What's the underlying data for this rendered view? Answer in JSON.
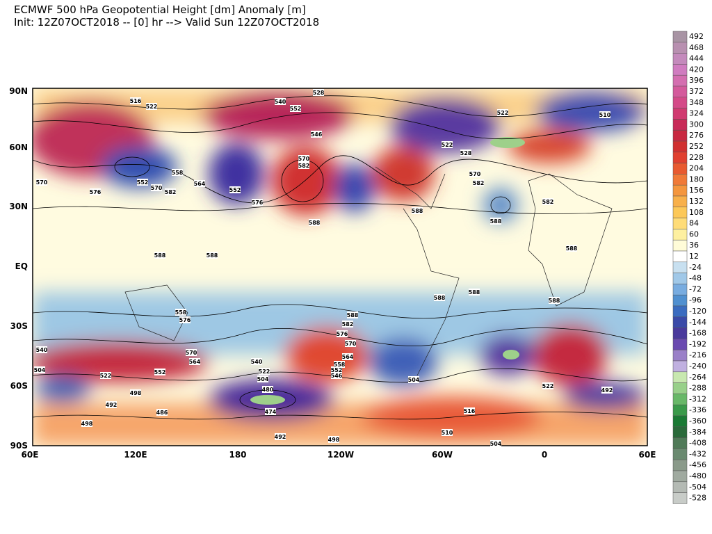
{
  "header": {
    "title": "ECMWF 500 hPa Geopotential Height [dm] Anomaly [m]",
    "subtitle": "Init: 12Z07OCT2018 -- [0] hr --> Valid Sun 12Z07OCT2018"
  },
  "map": {
    "lat_labels": [
      "90N",
      "60N",
      "30N",
      "EQ",
      "30S",
      "60S",
      "90S"
    ],
    "lon_labels": [
      "60E",
      "120E",
      "180",
      "120W",
      "60W",
      "0",
      "60E"
    ],
    "contour_labels": [
      "516",
      "522",
      "528",
      "540",
      "552",
      "546",
      "570",
      "582",
      "510",
      "522",
      "522",
      "528",
      "570",
      "582",
      "588",
      "588",
      "588",
      "588",
      "588",
      "588",
      "588",
      "588",
      "588",
      "588",
      "582",
      "576",
      "570",
      "564",
      "558",
      "552",
      "546",
      "540",
      "504",
      "522",
      "498",
      "492",
      "486",
      "498",
      "480",
      "474",
      "492",
      "498",
      "504",
      "516",
      "510",
      "504",
      "522",
      "492",
      "552",
      "558",
      "576",
      "570",
      "564",
      "540",
      "522",
      "504",
      "570",
      "576",
      "570",
      "582",
      "564",
      "552",
      "576",
      "558",
      "552",
      "582"
    ]
  },
  "colorbar": {
    "ticks": [
      492,
      468,
      444,
      420,
      396,
      372,
      348,
      324,
      300,
      276,
      252,
      228,
      204,
      180,
      156,
      132,
      108,
      84,
      60,
      36,
      12,
      -24,
      -48,
      -72,
      -96,
      -120,
      -144,
      -168,
      -192,
      -216,
      -240,
      -264,
      -288,
      -312,
      -336,
      -360,
      -384,
      -408,
      -432,
      -456,
      -480,
      -504,
      -528
    ]
  }
}
